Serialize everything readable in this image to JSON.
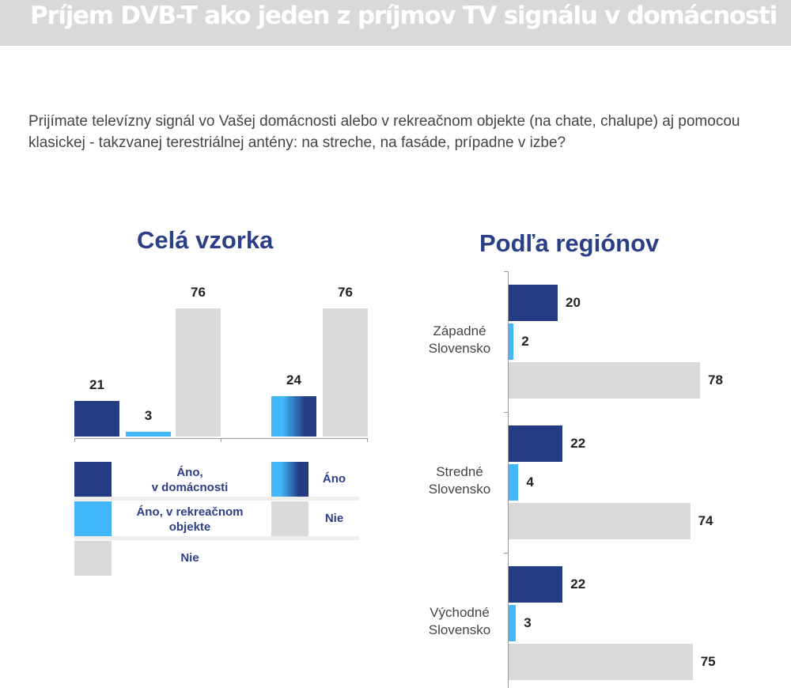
{
  "header": {
    "title": "Príjem DVB-T ako jeden z príjmov TV signálu v domácnosti"
  },
  "question": "Prijímate televízny signál vo Vašej domácnosti alebo v rekreačnom objekte (na chate, chalupe) aj pomocou klasickej - takzvanej terestriálnej antény: na streche, na fasáde, prípadne v izbe?",
  "colors": {
    "dark": "#233c82",
    "light": "#42b8fb",
    "gray": "#d9d9d9",
    "title_blue": "#2b3f87"
  },
  "chart_data": [
    {
      "type": "bar",
      "title": "Celá vzorka",
      "ylim": [
        0,
        80
      ],
      "grid": false,
      "groups": [
        {
          "bars": [
            {
              "name": "Áno, v domácnosti",
              "value": 21,
              "color": "dark"
            },
            {
              "name": "Áno, v rekreačnom objekte",
              "value": 3,
              "color": "light"
            },
            {
              "name": "Nie",
              "value": 76,
              "color": "gray"
            }
          ]
        },
        {
          "bars": [
            {
              "name": "Áno",
              "value": 24,
              "color": "gradient"
            },
            {
              "name": "Nie",
              "value": 76,
              "color": "gray"
            }
          ]
        }
      ],
      "legend": [
        {
          "label": "Áno,\nv domácnosti",
          "color": "dark"
        },
        {
          "label": "Áno, v rekreačnom objekte",
          "color": "light"
        },
        {
          "label": "Nie",
          "color": "gray"
        },
        {
          "label": "Áno",
          "color": "gradient"
        },
        {
          "label": "Nie",
          "color": "gray"
        }
      ],
      "legend_placement": "bottom"
    },
    {
      "type": "bar",
      "orientation": "horizontal",
      "title": "Podľa regiónov",
      "xlim": [
        0,
        80
      ],
      "grid": false,
      "categories": [
        "Západné Slovensko",
        "Stredné Slovensko",
        "Východné Slovensko"
      ],
      "series": [
        {
          "color": "dark",
          "values": [
            20,
            22,
            22
          ]
        },
        {
          "color": "light",
          "values": [
            2,
            4,
            3
          ]
        },
        {
          "color": "gray",
          "values": [
            78,
            74,
            75
          ]
        }
      ]
    }
  ]
}
